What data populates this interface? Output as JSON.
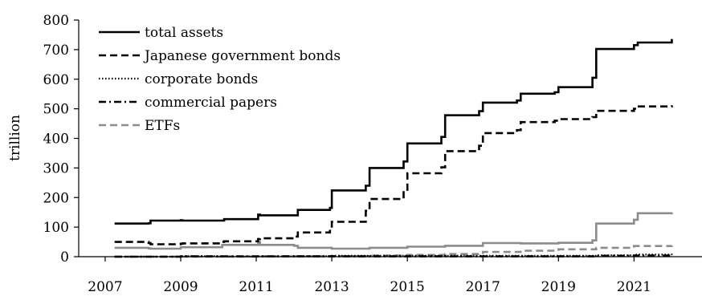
{
  "chart_data": {
    "type": "line",
    "ylabel": "trillion",
    "xlabel": "",
    "xlim": [
      2006.3,
      2022.8
    ],
    "ylim": [
      0,
      800
    ],
    "xticks": [
      2007,
      2009,
      2011,
      2013,
      2015,
      2017,
      2019,
      2021
    ],
    "yticks": [
      0,
      100,
      200,
      300,
      400,
      500,
      600,
      700,
      800
    ],
    "grid": false,
    "legend_position": "top-left",
    "series": [
      {
        "name": "total assets",
        "color": "#000000",
        "style": "solid",
        "x": [
          2007.25,
          2008.15,
          2008.2,
          2009.0,
          2009.05,
          2010.1,
          2010.15,
          2011.05,
          2011.1,
          2012.0,
          2012.1,
          2012.95,
          2013.0,
          2013.9,
          2014.0,
          2014.9,
          2015.0,
          2015.9,
          2016.0,
          2016.9,
          2017.0,
          2017.9,
          2018.0,
          2018.9,
          2019.0,
          2019.9,
          2020.0,
          2021.0,
          2021.1,
          2022.0
        ],
        "y": [
          112,
          113,
          122,
          123,
          122,
          122,
          127,
          142,
          140,
          140,
          158,
          165,
          224,
          240,
          300,
          322,
          383,
          405,
          478,
          492,
          521,
          528,
          551,
          556,
          573,
          605,
          702,
          715,
          724,
          736
        ]
      },
      {
        "name": "Japanese government bonds",
        "color": "#000000",
        "style": "dashed",
        "x": [
          2007.25,
          2008.15,
          2008.2,
          2009.0,
          2009.05,
          2010.1,
          2010.15,
          2011.05,
          2011.1,
          2012.0,
          2012.1,
          2012.95,
          2013.0,
          2013.9,
          2014.0,
          2014.9,
          2015.0,
          2015.9,
          2016.0,
          2016.9,
          2017.0,
          2017.9,
          2018.0,
          2018.9,
          2019.0,
          2019.9,
          2020.0,
          2021.0,
          2021.1,
          2022.0
        ],
        "y": [
          50,
          46,
          42,
          44,
          45,
          50,
          52,
          60,
          62,
          68,
          82,
          92,
          118,
          155,
          195,
          222,
          282,
          302,
          357,
          375,
          418,
          428,
          455,
          460,
          465,
          472,
          493,
          500,
          508,
          512
        ]
      },
      {
        "name": "corporate bonds",
        "color": "#000000",
        "style": "dotted",
        "x": [
          2007.25,
          2008.15,
          2009.0,
          2010.1,
          2011.05,
          2012.0,
          2013.0,
          2014.0,
          2015.0,
          2016.0,
          2017.0,
          2018.0,
          2019.0,
          2020.0,
          2021.0,
          2022.0
        ],
        "y": [
          0,
          0,
          2,
          1,
          1,
          2,
          3,
          3,
          3,
          3,
          3,
          3,
          3,
          5,
          7,
          6
        ]
      },
      {
        "name": "commercial papers",
        "color": "#000000",
        "style": "dashdot",
        "x": [
          2007.25,
          2008.15,
          2009.0,
          2010.1,
          2011.05,
          2012.0,
          2013.0,
          2014.0,
          2015.0,
          2016.0,
          2017.0,
          2018.0,
          2019.0,
          2020.0,
          2021.0,
          2022.0
        ],
        "y": [
          0,
          0,
          1,
          1,
          1,
          1,
          1,
          1,
          1,
          1,
          1,
          1,
          1,
          3,
          4,
          2
        ]
      },
      {
        "name": "ETFs",
        "color": "#8c8c8c",
        "style": "dashed",
        "x": [
          2007.25,
          2008.15,
          2009.0,
          2010.1,
          2011.05,
          2012.0,
          2013.0,
          2014.0,
          2015.0,
          2016.0,
          2017.0,
          2018.0,
          2019.0,
          2020.0,
          2021.0,
          2022.0
        ],
        "y": [
          0,
          0,
          0,
          0,
          1,
          1,
          2,
          4,
          6,
          9,
          16,
          20,
          25,
          30,
          36,
          37
        ]
      },
      {
        "name": "",
        "color": "#8c8c8c",
        "style": "solid",
        "x": [
          2007.25,
          2008.15,
          2008.2,
          2009.0,
          2010.1,
          2011.05,
          2011.1,
          2012.0,
          2012.1,
          2013.0,
          2014.0,
          2015.0,
          2016.0,
          2017.0,
          2018.0,
          2019.0,
          2019.9,
          2020.0,
          2021.0,
          2021.1,
          2022.0
        ],
        "y": [
          30,
          28,
          27,
          32,
          40,
          50,
          40,
          37,
          30,
          27,
          30,
          34,
          37,
          46,
          45,
          47,
          55,
          112,
          125,
          147,
          150
        ]
      }
    ]
  }
}
